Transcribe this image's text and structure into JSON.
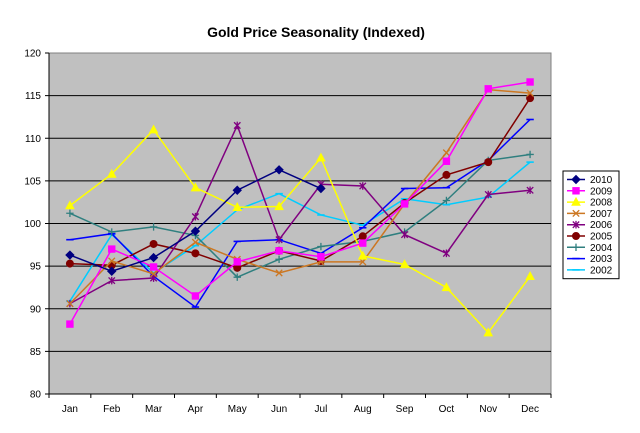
{
  "chart_data": {
    "type": "line",
    "title": "Gold Price Seasonality (Indexed)",
    "xlabel": "",
    "ylabel": "",
    "categories": [
      "Jan",
      "Feb",
      "Mar",
      "Apr",
      "May",
      "Jun",
      "Jul",
      "Aug",
      "Sep",
      "Oct",
      "Nov",
      "Dec"
    ],
    "ylim": [
      80,
      120
    ],
    "yticks": [
      80,
      85,
      90,
      95,
      100,
      105,
      110,
      115,
      120
    ],
    "grid": true,
    "legend_position": "right",
    "plot_background": "#c0c0c0",
    "series": [
      {
        "name": "2010",
        "color": "#000080",
        "marker": "diamond",
        "values": [
          96.3,
          94.4,
          96.0,
          99.1,
          103.9,
          106.3,
          104.1,
          null,
          null,
          null,
          null,
          null
        ]
      },
      {
        "name": "2009",
        "color": "#ff00ff",
        "marker": "square",
        "values": [
          88.2,
          97.0,
          94.9,
          91.5,
          95.5,
          96.8,
          96.1,
          97.7,
          102.3,
          107.3,
          115.8,
          116.6
        ]
      },
      {
        "name": "2008",
        "color": "#ffff00",
        "marker": "triangle",
        "values": [
          102.1,
          105.8,
          111.0,
          104.2,
          101.9,
          102.0,
          107.7,
          96.2,
          95.2,
          92.5,
          87.2,
          93.8
        ]
      },
      {
        "name": "2007",
        "color": "#cc7722",
        "marker": "x",
        "values": [
          90.6,
          95.6,
          94.1,
          97.8,
          95.8,
          94.2,
          95.5,
          95.5,
          102.3,
          108.3,
          115.7,
          115.3
        ]
      },
      {
        "name": "2006",
        "color": "#800080",
        "marker": "star",
        "values": [
          90.6,
          93.3,
          93.6,
          100.8,
          111.5,
          98.1,
          104.6,
          104.4,
          98.7,
          96.5,
          103.4,
          103.9
        ]
      },
      {
        "name": "2005",
        "color": "#800000",
        "marker": "circle",
        "values": [
          95.3,
          95.1,
          97.6,
          96.5,
          94.8,
          96.8,
          95.6,
          98.5,
          102.4,
          105.7,
          107.2,
          114.7
        ]
      },
      {
        "name": "2004",
        "color": "#2f7f7f",
        "marker": "plus",
        "values": [
          101.2,
          99.0,
          99.6,
          98.6,
          93.7,
          95.8,
          97.3,
          97.9,
          99.0,
          102.7,
          107.4,
          108.1
        ]
      },
      {
        "name": "2003",
        "color": "#0000ff",
        "marker": "dash",
        "values": [
          98.1,
          98.8,
          93.8,
          90.2,
          97.9,
          98.1,
          96.5,
          99.5,
          104.1,
          104.2,
          107.4,
          112.2
        ]
      },
      {
        "name": "2002",
        "color": "#00ccff",
        "marker": "dash",
        "values": [
          90.9,
          98.7,
          94.2,
          97.4,
          101.6,
          103.5,
          101.0,
          99.8,
          102.9,
          102.2,
          103.1,
          107.2
        ]
      }
    ]
  }
}
